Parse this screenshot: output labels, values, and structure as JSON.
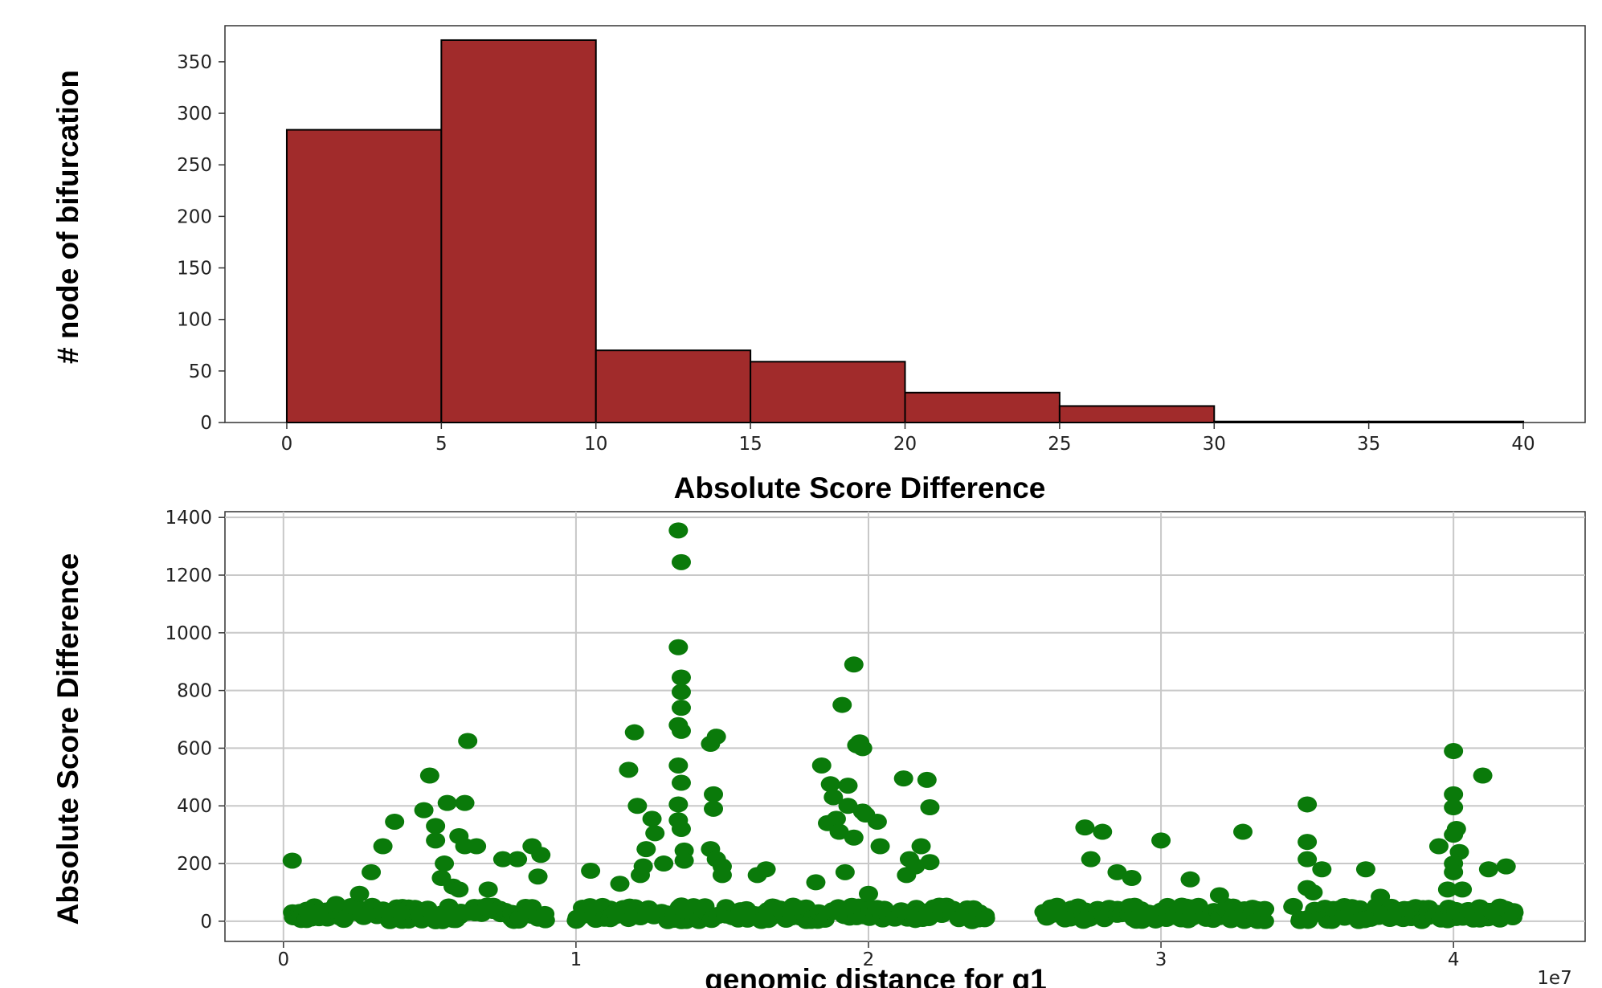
{
  "chart_data": [
    {
      "type": "bar",
      "subtype": "histogram",
      "bin_edges": [
        0,
        5,
        10,
        15,
        20,
        25,
        30,
        35,
        40
      ],
      "values": [
        284,
        371,
        70,
        59,
        29,
        16,
        1,
        1
      ],
      "xlabel": "Absolute Score Difference",
      "ylabel": "# node of bifurcation",
      "xlim": [
        -2,
        42
      ],
      "ylim": [
        0,
        385
      ],
      "xticks": [
        0,
        5,
        10,
        15,
        20,
        25,
        30,
        35,
        40
      ],
      "yticks": [
        0,
        50,
        100,
        150,
        200,
        250,
        300,
        350
      ],
      "bar_color": "#a12b2b",
      "edge_color": "#000000",
      "grid": false
    },
    {
      "type": "scatter",
      "xlabel": "genomic distance for g1",
      "ylabel": "Absolute Score Difference",
      "x_scale_label": "1e7",
      "xlim": [
        -0.2,
        4.45
      ],
      "ylim": [
        -70,
        1420
      ],
      "xticks": [
        0,
        1,
        2,
        3,
        4
      ],
      "yticks": [
        0,
        200,
        400,
        600,
        800,
        1000,
        1200,
        1400
      ],
      "point_color": "#0a7a0a",
      "grid": true,
      "points": [
        [
          0.03,
          210
        ],
        [
          0.08,
          40
        ],
        [
          0.12,
          30
        ],
        [
          0.18,
          60
        ],
        [
          0.26,
          95
        ],
        [
          0.3,
          170
        ],
        [
          0.34,
          260
        ],
        [
          0.38,
          345
        ],
        [
          0.4,
          30
        ],
        [
          0.48,
          385
        ],
        [
          0.5,
          505
        ],
        [
          0.52,
          280
        ],
        [
          0.52,
          330
        ],
        [
          0.54,
          150
        ],
        [
          0.55,
          200
        ],
        [
          0.56,
          410
        ],
        [
          0.58,
          120
        ],
        [
          0.6,
          110
        ],
        [
          0.6,
          295
        ],
        [
          0.62,
          410
        ],
        [
          0.62,
          260
        ],
        [
          0.63,
          625
        ],
        [
          0.66,
          260
        ],
        [
          0.7,
          110
        ],
        [
          0.75,
          215
        ],
        [
          0.8,
          215
        ],
        [
          0.85,
          260
        ],
        [
          0.87,
          155
        ],
        [
          0.88,
          230
        ],
        [
          1.05,
          175
        ],
        [
          1.15,
          130
        ],
        [
          1.18,
          525
        ],
        [
          1.2,
          655
        ],
        [
          1.21,
          400
        ],
        [
          1.22,
          160
        ],
        [
          1.23,
          190
        ],
        [
          1.24,
          250
        ],
        [
          1.26,
          355
        ],
        [
          1.27,
          305
        ],
        [
          1.3,
          200
        ],
        [
          1.35,
          1355
        ],
        [
          1.36,
          1245
        ],
        [
          1.35,
          950
        ],
        [
          1.36,
          845
        ],
        [
          1.36,
          795
        ],
        [
          1.36,
          740
        ],
        [
          1.35,
          680
        ],
        [
          1.36,
          660
        ],
        [
          1.35,
          540
        ],
        [
          1.36,
          480
        ],
        [
          1.35,
          405
        ],
        [
          1.35,
          350
        ],
        [
          1.36,
          320
        ],
        [
          1.37,
          245
        ],
        [
          1.37,
          210
        ],
        [
          1.46,
          615
        ],
        [
          1.48,
          640
        ],
        [
          1.47,
          440
        ],
        [
          1.47,
          390
        ],
        [
          1.46,
          250
        ],
        [
          1.48,
          215
        ],
        [
          1.5,
          190
        ],
        [
          1.5,
          160
        ],
        [
          1.62,
          160
        ],
        [
          1.65,
          180
        ],
        [
          1.82,
          135
        ],
        [
          1.84,
          540
        ],
        [
          1.86,
          340
        ],
        [
          1.87,
          475
        ],
        [
          1.88,
          430
        ],
        [
          1.89,
          355
        ],
        [
          1.9,
          310
        ],
        [
          1.91,
          750
        ],
        [
          1.92,
          170
        ],
        [
          1.93,
          400
        ],
        [
          1.95,
          890
        ],
        [
          1.96,
          610
        ],
        [
          1.97,
          620
        ],
        [
          1.98,
          600
        ],
        [
          1.93,
          470
        ],
        [
          1.95,
          290
        ],
        [
          1.98,
          380
        ],
        [
          1.99,
          370
        ],
        [
          2.0,
          95
        ],
        [
          2.03,
          345
        ],
        [
          2.04,
          260
        ],
        [
          2.12,
          495
        ],
        [
          2.13,
          160
        ],
        [
          2.14,
          215
        ],
        [
          2.16,
          190
        ],
        [
          2.18,
          260
        ],
        [
          2.2,
          490
        ],
        [
          2.21,
          395
        ],
        [
          2.21,
          205
        ],
        [
          2.74,
          325
        ],
        [
          2.76,
          215
        ],
        [
          2.8,
          310
        ],
        [
          2.85,
          170
        ],
        [
          2.9,
          150
        ],
        [
          3.0,
          280
        ],
        [
          3.1,
          145
        ],
        [
          3.2,
          90
        ],
        [
          3.28,
          310
        ],
        [
          3.5,
          405
        ],
        [
          3.5,
          275
        ],
        [
          3.5,
          215
        ],
        [
          3.5,
          115
        ],
        [
          3.52,
          100
        ],
        [
          3.55,
          180
        ],
        [
          3.7,
          180
        ],
        [
          3.75,
          85
        ],
        [
          3.95,
          260
        ],
        [
          3.98,
          110
        ],
        [
          4.0,
          590
        ],
        [
          4.0,
          440
        ],
        [
          4.0,
          395
        ],
        [
          4.01,
          320
        ],
        [
          4.0,
          300
        ],
        [
          4.02,
          240
        ],
        [
          4.0,
          200
        ],
        [
          4.0,
          170
        ],
        [
          4.03,
          110
        ],
        [
          4.1,
          505
        ],
        [
          4.12,
          180
        ],
        [
          4.18,
          190
        ]
      ]
    }
  ]
}
